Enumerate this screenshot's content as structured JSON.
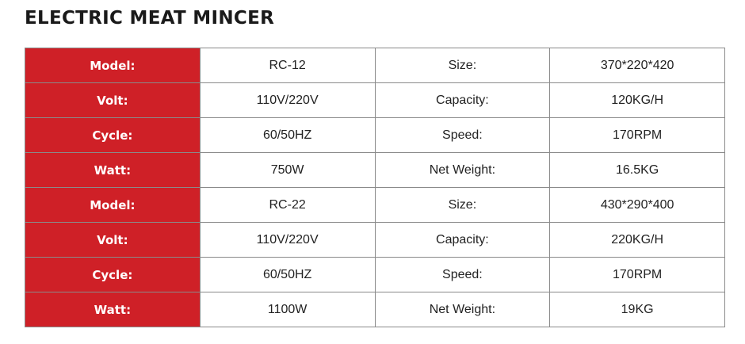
{
  "title": "ELECTRIC MEAT MINCER",
  "accent_color": "#cf2027",
  "rows": [
    [
      "Model:",
      "RC-12",
      "Size:",
      "370*220*420"
    ],
    [
      "Volt:",
      "110V/220V",
      "Capacity:",
      "120KG/H"
    ],
    [
      "Cycle:",
      "60/50HZ",
      "Speed:",
      "170RPM"
    ],
    [
      "Watt:",
      "750W",
      "Net Weight:",
      "16.5KG"
    ],
    [
      "Model:",
      "RC-22",
      "Size:",
      "430*290*400"
    ],
    [
      "Volt:",
      "110V/220V",
      "Capacity:",
      "220KG/H"
    ],
    [
      "Cycle:",
      "60/50HZ",
      "Speed:",
      "170RPM"
    ],
    [
      "Watt:",
      "1100W",
      "Net Weight:",
      "19KG"
    ]
  ]
}
